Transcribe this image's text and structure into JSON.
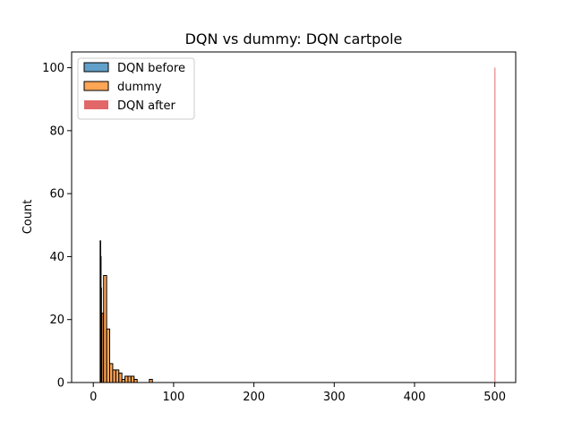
{
  "chart_data": {
    "type": "bar",
    "title": "DQN vs dummy: DQN cartpole",
    "xlabel": "",
    "ylabel": "Count",
    "xlim": [
      -27,
      526
    ],
    "ylim": [
      0,
      105
    ],
    "xticks": [
      0,
      100,
      200,
      300,
      400,
      500
    ],
    "yticks": [
      0,
      20,
      40,
      60,
      80,
      100
    ],
    "grid": false,
    "legend_position": "top-left",
    "series": [
      {
        "name": "DQN before",
        "color": "#1f77b4",
        "bin_width": 0.5,
        "bins": [
          {
            "x0": 8.5,
            "count": 45
          },
          {
            "x0": 9.0,
            "count": 40
          },
          {
            "x0": 9.5,
            "count": 30
          },
          {
            "x0": 10.0,
            "count": 22
          }
        ]
      },
      {
        "name": "dummy",
        "color": "#ff7f0e",
        "bin_width": 3.8,
        "bins": [
          {
            "x0": 9.0,
            "count": 22
          },
          {
            "x0": 12.8,
            "count": 34
          },
          {
            "x0": 16.6,
            "count": 17
          },
          {
            "x0": 20.4,
            "count": 6
          },
          {
            "x0": 24.2,
            "count": 4
          },
          {
            "x0": 28.0,
            "count": 4
          },
          {
            "x0": 31.8,
            "count": 3
          },
          {
            "x0": 35.6,
            "count": 1
          },
          {
            "x0": 39.4,
            "count": 2
          },
          {
            "x0": 43.2,
            "count": 2
          },
          {
            "x0": 47.0,
            "count": 2
          },
          {
            "x0": 50.8,
            "count": 1
          },
          {
            "x0": 54.6,
            "count": 0
          },
          {
            "x0": 58.4,
            "count": 0
          },
          {
            "x0": 62.2,
            "count": 0
          },
          {
            "x0": 66.0,
            "count": 0
          },
          {
            "x0": 69.8,
            "count": 1
          }
        ]
      },
      {
        "name": "DQN after",
        "color": "#d62728",
        "bin_width": 0.5,
        "bins": [
          {
            "x0": 499.8,
            "count": 100
          }
        ]
      }
    ]
  }
}
